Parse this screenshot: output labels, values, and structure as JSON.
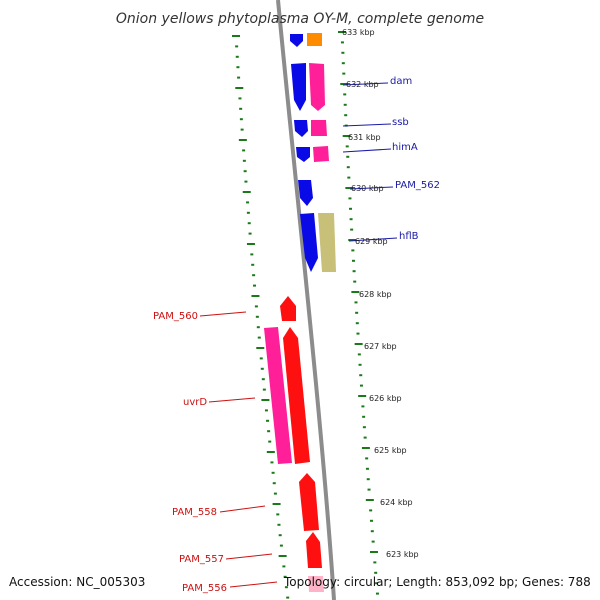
{
  "header": {
    "title": "Onion yellows phytoplasma OY-M, complete genome"
  },
  "footer": {
    "accession": "Accession: NC_005303",
    "topology": "Topology: circular; Length: 853,092 bp; Genes: 788"
  },
  "colors": {
    "backbone": "#8c8c8c",
    "tick_green": "#1a7a1a",
    "blue": "#0a0ae6",
    "orange": "#ff8c00",
    "pink": "#ff1f99",
    "red": "#ff1010",
    "khaki": "#c8bf78",
    "blue_label": "#1a1aa6",
    "red_label": "#cc1111"
  },
  "kbp_labels": [
    "633 kbp",
    "632 kbp",
    "631 kbp",
    "630 kbp",
    "629 kbp",
    "628 kbp",
    "627 kbp",
    "626 kbp",
    "625 kbp",
    "624 kbp",
    "623 kbp"
  ],
  "gene_labels_right": [
    "dam",
    "ssb",
    "himA",
    "PAM_562",
    "hflB"
  ],
  "gene_labels_left": [
    "PAM_560",
    "uvrD",
    "PAM_558",
    "PAM_557",
    "PAM_556"
  ]
}
